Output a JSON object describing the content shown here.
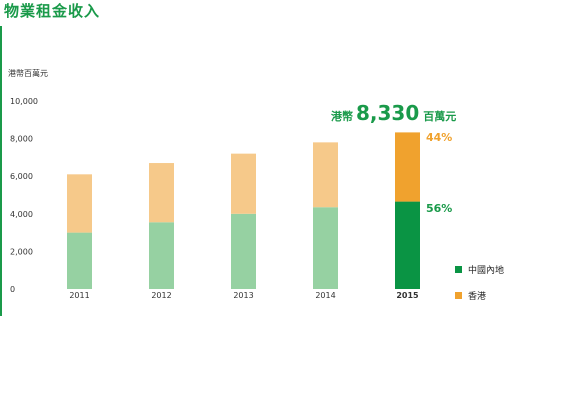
{
  "title": "物業租金收入",
  "colors": {
    "accent": "#1a9a4a",
    "mainland_light": "#96d1a2",
    "mainland_dark": "#0a9444",
    "hongkong_light": "#f6c98a",
    "hongkong_dark": "#f0a22e",
    "hongkong_pct": "#f0a22e"
  },
  "chart_data": {
    "type": "bar",
    "stacked": true,
    "title": "物業租金收入",
    "ylabel": "港幣百萬元",
    "xlabel": "",
    "categories": [
      "2011",
      "2012",
      "2013",
      "2014",
      "2015"
    ],
    "ylim": [
      0,
      10000
    ],
    "yticks": [
      "0",
      "2,000",
      "4,000",
      "6,000",
      "8,000",
      "10,000"
    ],
    "yticks_values": [
      0,
      2000,
      4000,
      6000,
      8000,
      10000
    ],
    "series": [
      {
        "name": "中國內地",
        "values": [
          3000,
          3550,
          4000,
          4350,
          4650
        ]
      },
      {
        "name": "香港",
        "values": [
          3100,
          3150,
          3200,
          3450,
          3680
        ]
      }
    ],
    "highlight_category": "2015",
    "annotation": {
      "prefix": "港幣",
      "value": "8,330",
      "suffix": "百萬元"
    },
    "percent_labels": {
      "hongkong": "44%",
      "mainland": "56%"
    },
    "legend": {
      "placement": "right",
      "items": [
        "中國內地",
        "香港"
      ]
    },
    "grid": false
  }
}
